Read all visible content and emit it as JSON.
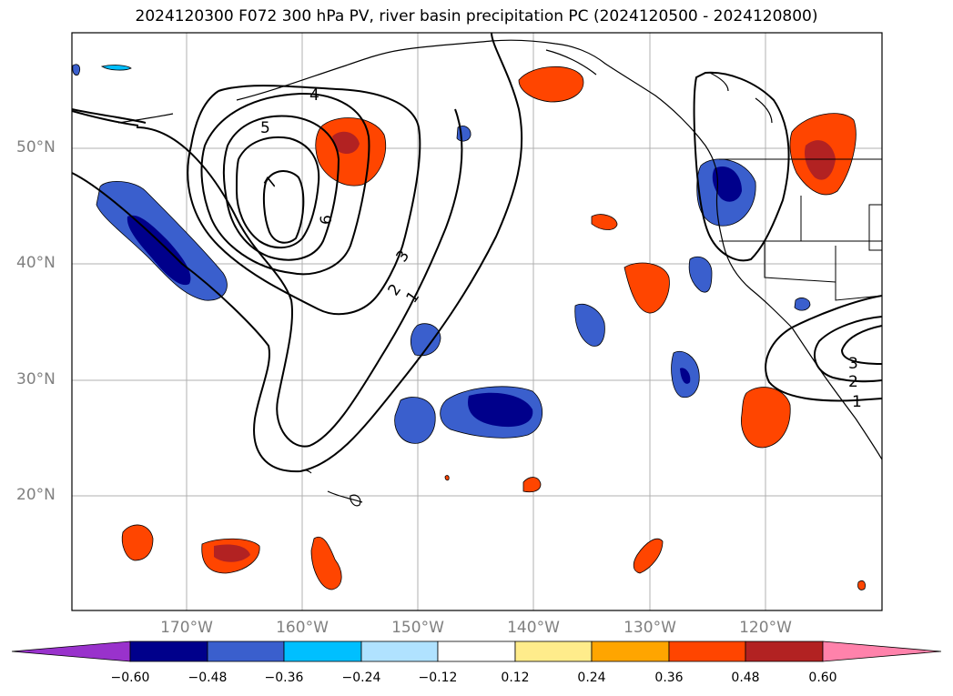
{
  "title": "2024120300 F072 300 hPa PV, river basin precipitation PC (2024120500 - 2024120800)",
  "lat_labels": [
    "50°N",
    "40°N",
    "30°N",
    "20°N"
  ],
  "lon_labels": [
    "170°W",
    "160°W",
    "150°W",
    "140°W",
    "130°W",
    "120°W"
  ],
  "pv_contour_labels": [
    "1",
    "2",
    "3",
    "4",
    "5",
    "6",
    "7"
  ],
  "colorbar": {
    "tick_labels": [
      "−0.60",
      "−0.48",
      "−0.36",
      "−0.24",
      "−0.12",
      "0.12",
      "0.24",
      "0.36",
      "0.48",
      "0.60"
    ],
    "colors": [
      "#9932cc",
      "#00008b",
      "#3a5fcd",
      "#00bfff",
      "#b0e2ff",
      "#ffffff",
      "#ffec8b",
      "#ffa500",
      "#ff4500",
      "#b22222",
      "#ff82ab"
    ]
  }
}
